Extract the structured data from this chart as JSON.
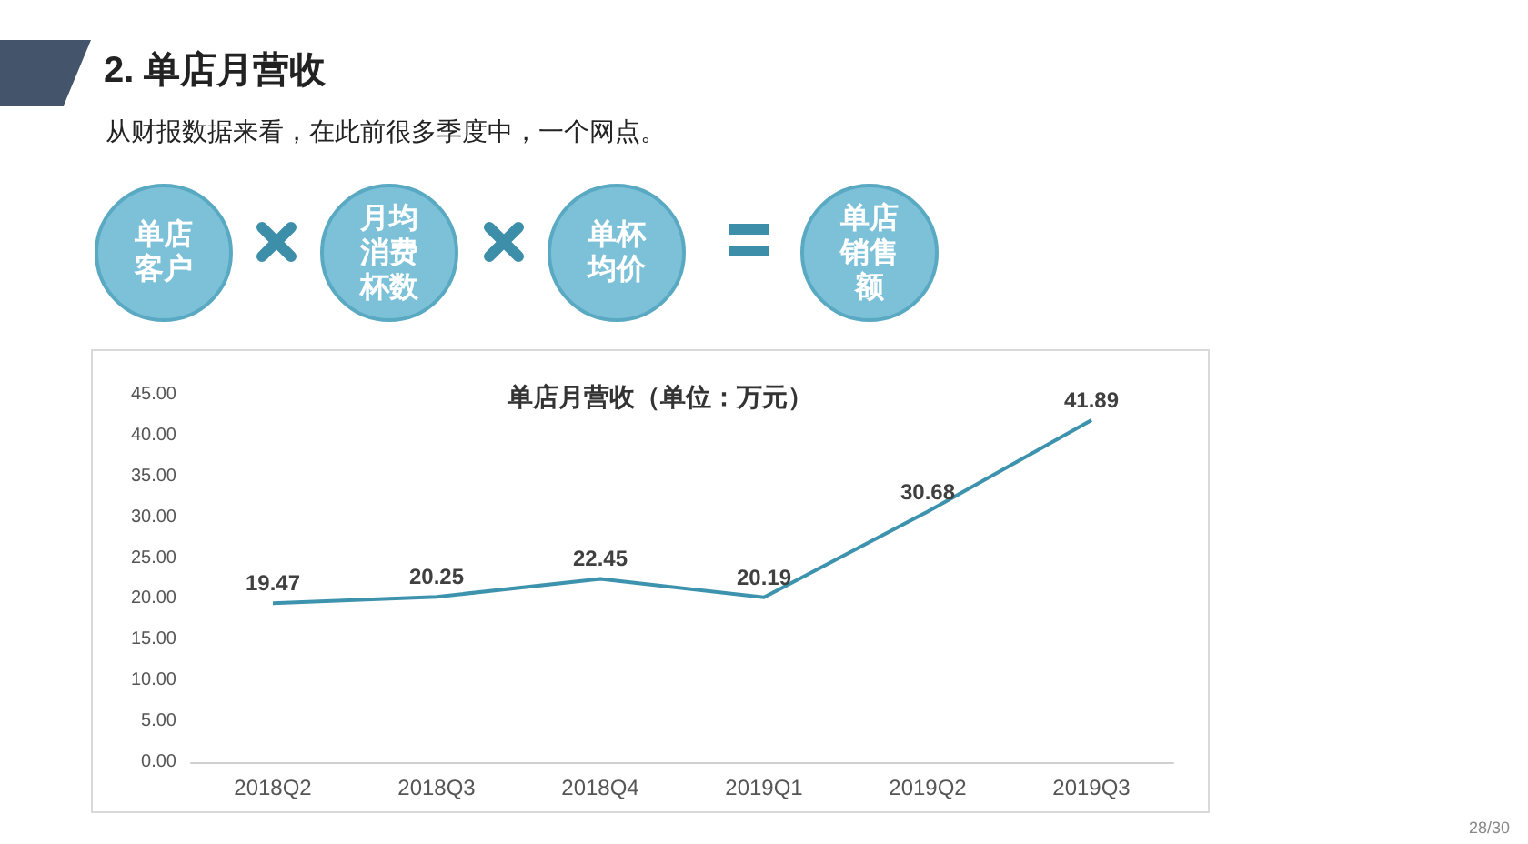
{
  "chart_data": {
    "type": "line",
    "title": "单店月营收（单位：万元）",
    "categories": [
      "2018Q2",
      "2018Q3",
      "2018Q4",
      "2019Q1",
      "2019Q2",
      "2019Q3"
    ],
    "values": [
      19.47,
      20.25,
      22.45,
      20.19,
      30.68,
      41.89
    ],
    "color": "#3d93ad",
    "ylim": [
      0,
      45
    ],
    "yticks": [
      {
        "value": 0,
        "label": "0.00"
      },
      {
        "value": 5,
        "label": "5.00"
      },
      {
        "value": 10,
        "label": "10.00"
      },
      {
        "value": 15,
        "label": "15.00"
      },
      {
        "value": 20,
        "label": "20.00"
      },
      {
        "value": 25,
        "label": "25.00"
      },
      {
        "value": 30,
        "label": "30.00"
      },
      {
        "value": 35,
        "label": "35.00"
      },
      {
        "value": 40,
        "label": "40.00"
      },
      {
        "value": 45,
        "label": "45.00"
      }
    ],
    "data_labels": true,
    "grid": false,
    "marker": "none",
    "line_style": "solid",
    "annotations": [
      "2. 单店月营收",
      "从财报数据来看，在此前很多季度中，一个网点。",
      "单店客户",
      "月均消费杯数",
      "单杯均价",
      "单店销售额",
      "28/30"
    ]
  }
}
